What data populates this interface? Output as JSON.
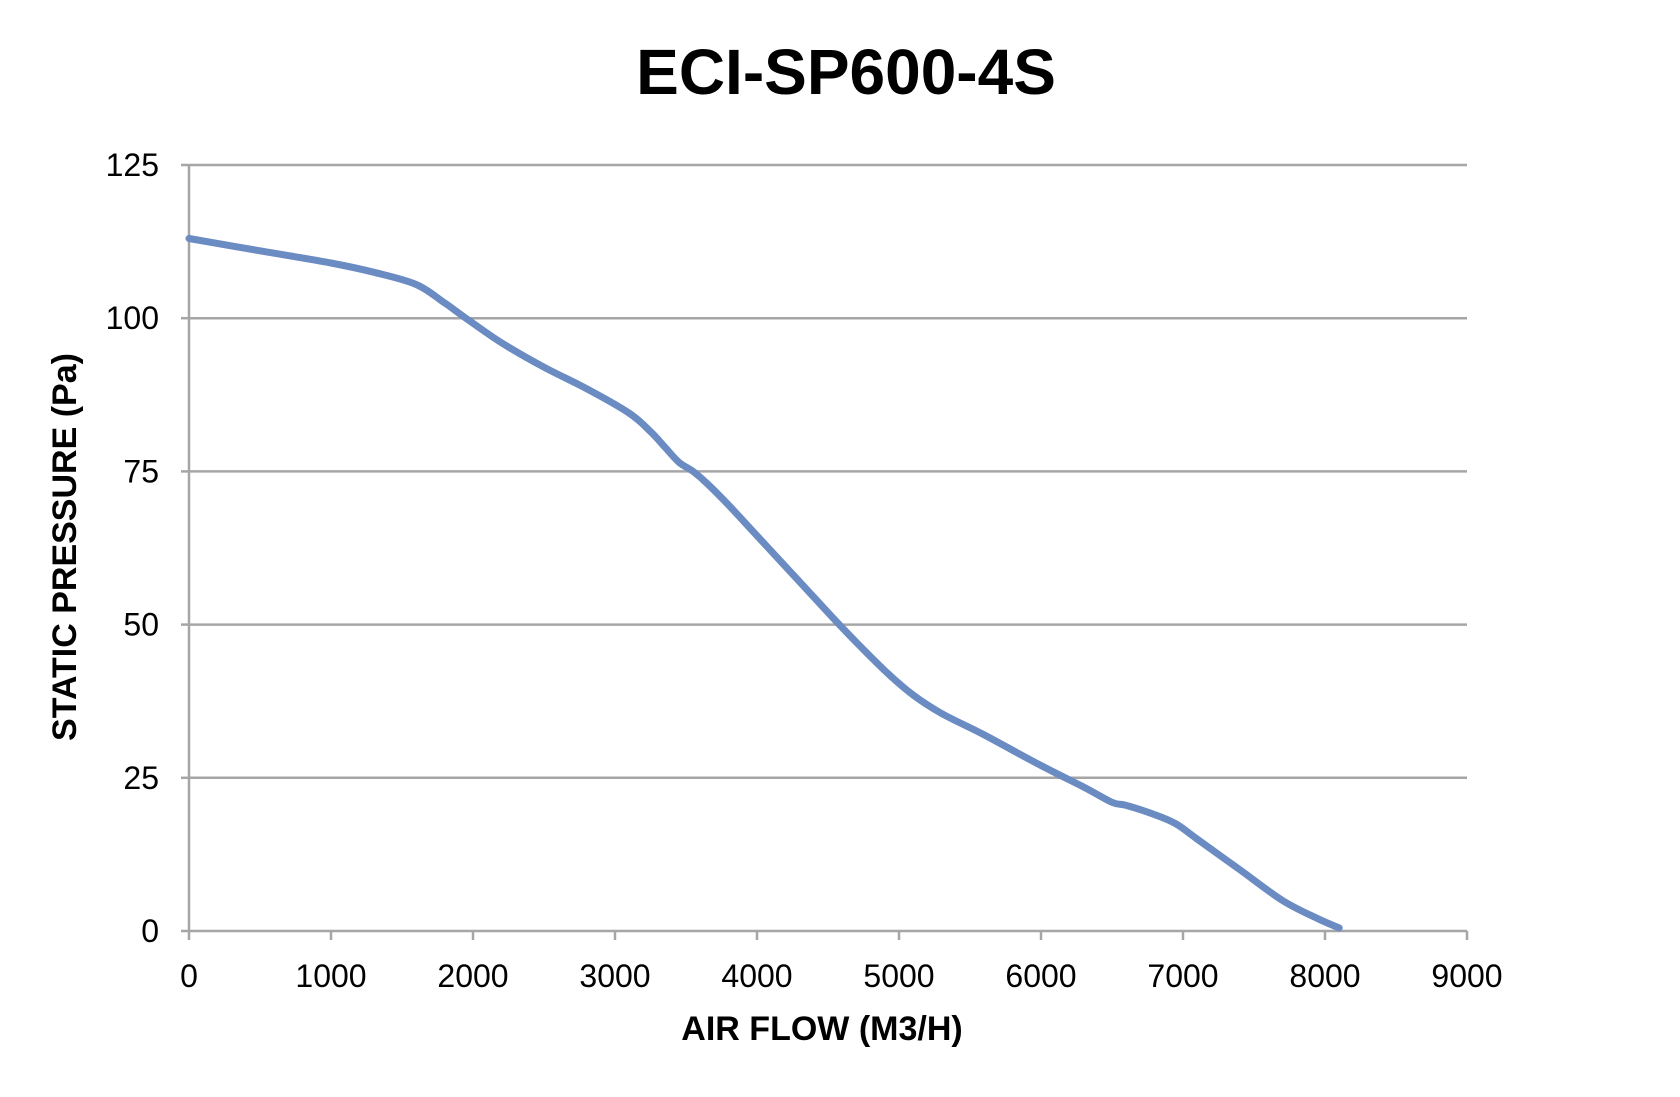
{
  "chart_data": {
    "type": "line",
    "title": "ECI-SP600-4S",
    "xlabel": "AIR FLOW (M3/H)",
    "ylabel": "STATIC PRESSURE (Pa)",
    "xlim": [
      0,
      9000
    ],
    "ylim": [
      0,
      125
    ],
    "x_ticks": [
      "0",
      "1000",
      "2000",
      "3000",
      "4000",
      "5000",
      "6000",
      "7000",
      "8000",
      "9000"
    ],
    "y_ticks": [
      "0",
      "25",
      "50",
      "75",
      "100",
      "125"
    ],
    "grid": "horizontal",
    "legend": "none",
    "series": [
      {
        "color": "#6a8cc3",
        "x": [
          0,
          500,
          1000,
          1300,
          1600,
          1800,
          1950,
          2200,
          2500,
          2800,
          3100,
          3250,
          3350,
          3450,
          3550,
          3650,
          3800,
          4000,
          4300,
          4600,
          4900,
          5100,
          5300,
          5600,
          6000,
          6300,
          6500,
          6600,
          6800,
          6950,
          7100,
          7400,
          7700,
          7950,
          8100
        ],
        "y": [
          113,
          111,
          109,
          107.5,
          105.5,
          102.5,
          100,
          96,
          92,
          88.5,
          84.5,
          81.5,
          79,
          76.5,
          75,
          73,
          69.5,
          64.5,
          57,
          49.5,
          42.5,
          38.5,
          35.5,
          32,
          27,
          23.5,
          21,
          20.5,
          19,
          17.5,
          15,
          10,
          5,
          2,
          0.5
        ]
      }
    ]
  }
}
